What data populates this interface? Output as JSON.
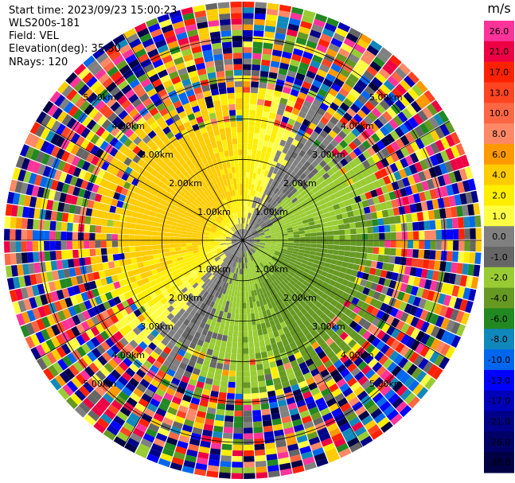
{
  "header": {
    "start_time": "Start time: 2023/09/23 15:00:23",
    "instrument": "WLS200s-181",
    "field": "Field: VEL",
    "elevation": "Elevation(deg): 35.30",
    "nrays": "NRays: 120"
  },
  "chart_data": {
    "type": "heatmap",
    "projection": "polar-ppi",
    "field": "VEL",
    "unit": "m/s",
    "nrays": 120,
    "range_rings_km": [
      1.0,
      2.0,
      3.0,
      4.0,
      5.0
    ],
    "range_ring_labels": [
      "1.00km",
      "2.00km",
      "3.00km",
      "4.00km",
      "5.00km"
    ],
    "max_range_km": 5.9,
    "colorbar": {
      "title": "m/s",
      "tick_labels": [
        "26.0",
        "21.0",
        "17.0",
        "13.0",
        "10.0",
        "8.0",
        "6.0",
        "4.0",
        "2.0",
        "1.0",
        "0.0",
        "-1.0",
        "-2.0",
        "-4.0",
        "-6.0",
        "-8.0",
        "-10.0",
        "-13.0",
        "-17.0",
        "-21.0",
        "-26.0",
        "-30.0"
      ],
      "colors": [
        "#ff3399",
        "#ee0044",
        "#ff2200",
        "#ff4422",
        "#ff6644",
        "#ff8866",
        "#ff9900",
        "#ffcc00",
        "#ffee00",
        "#ffff44",
        "#808080",
        "#666666",
        "#99cc33",
        "#669922",
        "#228822",
        "#1188bb",
        "#0066ee",
        "#0000ff",
        "#0000bb",
        "#000088",
        "#000066",
        "#000044"
      ]
    },
    "grid": true
  }
}
